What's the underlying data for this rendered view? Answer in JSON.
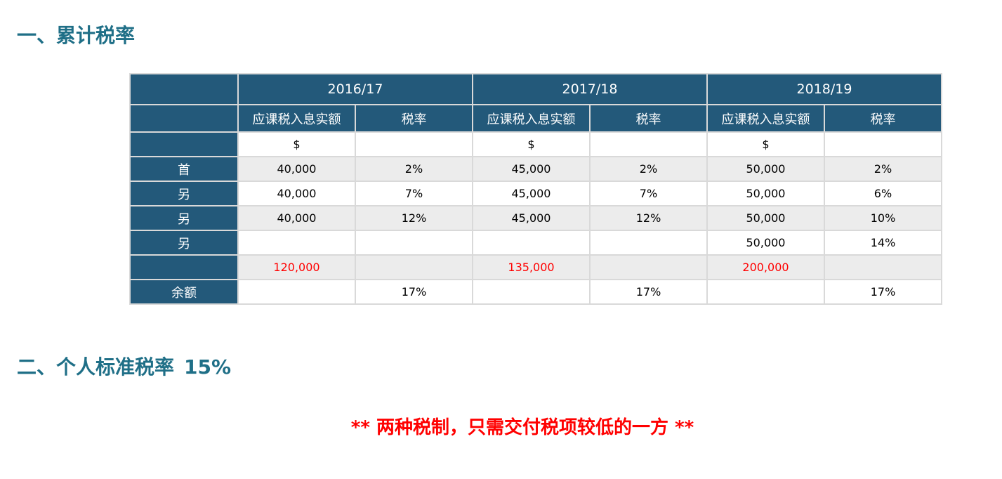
{
  "heading1": "一、累计税率",
  "heading2": {
    "text": "二、个人标准税率",
    "rate": "15%"
  },
  "note": "** 两种税制，只需交付税项较低的一方 **",
  "table": {
    "years": [
      "2016/17",
      "2017/18",
      "2018/19"
    ],
    "sub_headers": {
      "income": "应课税入息实额",
      "rate": "税率"
    },
    "currency": "$",
    "rows": [
      {
        "label": "首",
        "cells": [
          "40,000",
          "2%",
          "45,000",
          "2%",
          "50,000",
          "2%"
        ]
      },
      {
        "label": "另",
        "cells": [
          "40,000",
          "7%",
          "45,000",
          "7%",
          "50,000",
          "6%"
        ]
      },
      {
        "label": "另",
        "cells": [
          "40,000",
          "12%",
          "45,000",
          "12%",
          "50,000",
          "10%"
        ]
      },
      {
        "label": "另",
        "cells": [
          "",
          "",
          "",
          "",
          "50,000",
          "14%"
        ]
      },
      {
        "label": "",
        "cells": [
          "120,000",
          "",
          "135,000",
          "",
          "200,000",
          ""
        ]
      },
      {
        "label": "余额",
        "cells": [
          "",
          "17%",
          "",
          "17%",
          "",
          "17%"
        ]
      }
    ]
  },
  "colors": {
    "header_bg": "#23597a",
    "heading_text": "#1f6f87",
    "accent_red": "#ff0000",
    "shaded_row": "#ececec"
  }
}
